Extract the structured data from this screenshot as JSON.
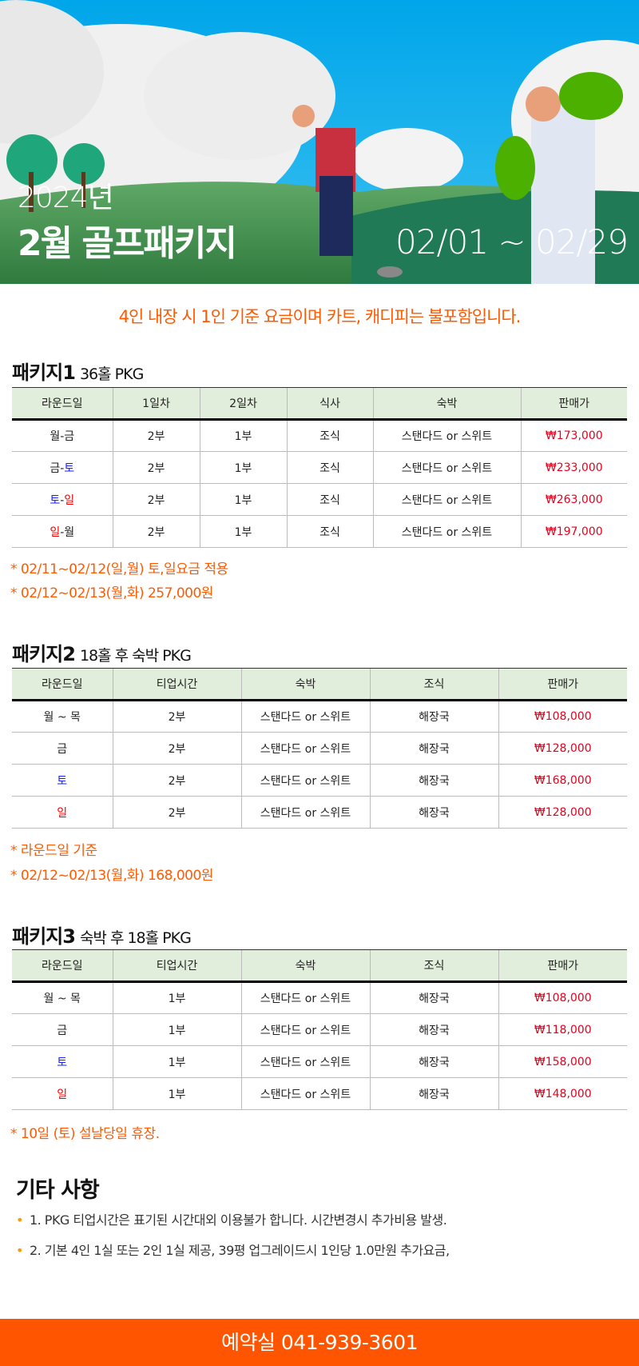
{
  "banner": {
    "year": "2024년",
    "title": "2월 골프패키지",
    "date_range": "02/01 ~ 02/29"
  },
  "notice": "4인 내장 시 1인 기준 요금이며 카트, 캐디피는 불포함입니다.",
  "packages": [
    {
      "title": "패키지1",
      "subtitle": "36홀 PKG",
      "headers": [
        "라운드일",
        "1일차",
        "2일차",
        "식사",
        "숙박",
        "판매가"
      ],
      "rows": [
        {
          "day": [
            {
              "t": "월",
              "c": ""
            },
            {
              "t": "-",
              "c": ""
            },
            {
              "t": "금",
              "c": ""
            }
          ],
          "cells": [
            "2부",
            "1부",
            "조식",
            "스탠다드 or 스위트",
            "₩173,000"
          ]
        },
        {
          "day": [
            {
              "t": "금",
              "c": ""
            },
            {
              "t": "-",
              "c": ""
            },
            {
              "t": "토",
              "c": "blue"
            }
          ],
          "cells": [
            "2부",
            "1부",
            "조식",
            "스탠다드 or 스위트",
            "₩233,000"
          ]
        },
        {
          "day": [
            {
              "t": "토",
              "c": "blue"
            },
            {
              "t": "-",
              "c": ""
            },
            {
              "t": "일",
              "c": "red"
            }
          ],
          "cells": [
            "2부",
            "1부",
            "조식",
            "스탠다드 or 스위트",
            "₩263,000"
          ]
        },
        {
          "day": [
            {
              "t": "일",
              "c": "red"
            },
            {
              "t": "-",
              "c": ""
            },
            {
              "t": "월",
              "c": ""
            }
          ],
          "cells": [
            "2부",
            "1부",
            "조식",
            "스탠다드 or 스위트",
            "₩197,000"
          ]
        }
      ],
      "notes": [
        "* 02/11~02/12(일,월) 토,일요금 적용",
        "* 02/12~02/13(월,화) 257,000원"
      ]
    },
    {
      "title": "패키지2",
      "subtitle": "18홀 후 숙박 PKG",
      "headers": [
        "라운드일",
        "티업시간",
        "숙박",
        "조식",
        "판매가"
      ],
      "rows": [
        {
          "day": [
            {
              "t": "월 ~ 목",
              "c": ""
            }
          ],
          "cells": [
            "2부",
            "스탠다드 or 스위트",
            "해장국",
            "₩108,000"
          ]
        },
        {
          "day": [
            {
              "t": "금",
              "c": ""
            }
          ],
          "cells": [
            "2부",
            "스탠다드 or 스위트",
            "해장국",
            "₩128,000"
          ]
        },
        {
          "day": [
            {
              "t": "토",
              "c": "blue"
            }
          ],
          "cells": [
            "2부",
            "스탠다드 or 스위트",
            "해장국",
            "₩168,000"
          ]
        },
        {
          "day": [
            {
              "t": "일",
              "c": "red"
            }
          ],
          "cells": [
            "2부",
            "스탠다드 or 스위트",
            "해장국",
            "₩128,000"
          ]
        }
      ],
      "notes": [
        "* 라운드일 기준",
        "* 02/12~02/13(월,화) 168,000원"
      ]
    },
    {
      "title": "패키지3",
      "subtitle": "숙박 후 18홀 PKG",
      "headers": [
        "라운드일",
        "티업시간",
        "숙박",
        "조식",
        "판매가"
      ],
      "rows": [
        {
          "day": [
            {
              "t": "월 ~ 목",
              "c": ""
            }
          ],
          "cells": [
            "1부",
            "스탠다드 or 스위트",
            "해장국",
            "₩108,000"
          ]
        },
        {
          "day": [
            {
              "t": "금",
              "c": ""
            }
          ],
          "cells": [
            "1부",
            "스탠다드 or 스위트",
            "해장국",
            "₩118,000"
          ]
        },
        {
          "day": [
            {
              "t": "토",
              "c": "blue"
            }
          ],
          "cells": [
            "1부",
            "스탠다드 or 스위트",
            "해장국",
            "₩158,000"
          ]
        },
        {
          "day": [
            {
              "t": "일",
              "c": "red"
            }
          ],
          "cells": [
            "1부",
            "스탠다드 or 스위트",
            "해장국",
            "₩148,000"
          ]
        }
      ],
      "notes": [
        "* 10일 (토) 설날당일 휴장."
      ]
    }
  ],
  "etc": {
    "title": "기타 사항",
    "items": [
      "1. PKG 티업시간은 표기된 시간대외 이용불가 합니다. 시간변경시 추가비용 발생.",
      "2. 기본 4인 1실 또는 2인 1실 제공, 39평 업그레이드시 1인당 1.0만원 추가요금,"
    ]
  },
  "footer": {
    "label": "예약실 041-939-3601"
  },
  "colors": {
    "accent": "#ff5500",
    "price": "#e8001c",
    "header_bg": "#e1eedb"
  }
}
